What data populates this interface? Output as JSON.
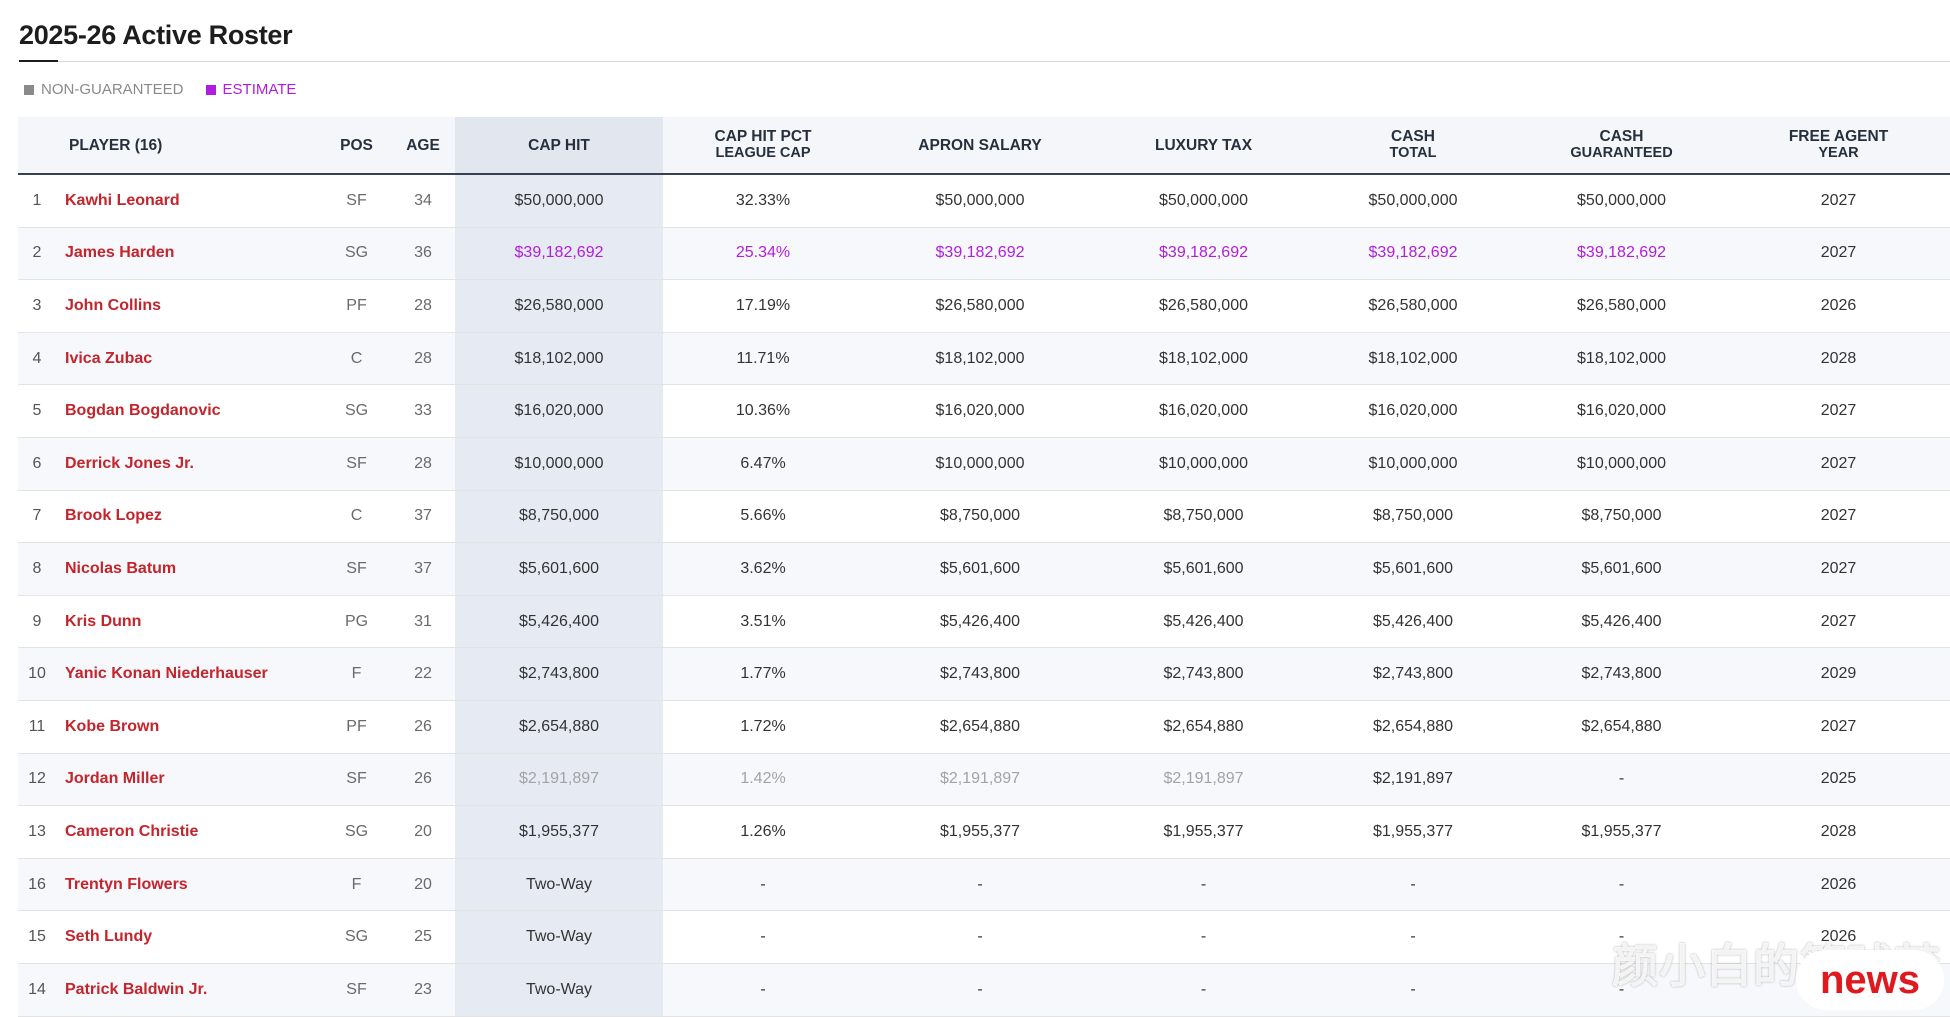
{
  "page": {
    "title": "2025-26 Active Roster"
  },
  "legend": [
    {
      "label": "NON-GUARANTEED",
      "color": "#8a8a8a"
    },
    {
      "label": "ESTIMATE",
      "color": "#b11de0"
    }
  ],
  "columns": {
    "player": "PLAYER (16)",
    "pos": "POS",
    "age": "AGE",
    "cap_hit": "CAP HIT",
    "cap_pct": [
      "CAP HIT PCT",
      "LEAGUE CAP"
    ],
    "apron": "APRON SALARY",
    "lux": "LUXURY TAX",
    "cash_total": [
      "CASH",
      "TOTAL"
    ],
    "cash_guar": [
      "CASH",
      "GUARANTEED"
    ],
    "fa": [
      "FREE AGENT",
      "YEAR"
    ]
  },
  "rows": [
    {
      "num": "1",
      "player": "Kawhi Leonard",
      "pos": "SF",
      "age": "34",
      "cap_hit": "$50,000,000",
      "cap_pct": "32.33%",
      "apron": "$50,000,000",
      "lux": "$50,000,000",
      "cash_total": "$50,000,000",
      "cash_guar": "$50,000,000",
      "fa": "2027",
      "status": "normal"
    },
    {
      "num": "2",
      "player": "James Harden",
      "pos": "SG",
      "age": "36",
      "cap_hit": "$39,182,692",
      "cap_pct": "25.34%",
      "apron": "$39,182,692",
      "lux": "$39,182,692",
      "cash_total": "$39,182,692",
      "cash_guar": "$39,182,692",
      "fa": "2027",
      "status": "estimate"
    },
    {
      "num": "3",
      "player": "John Collins",
      "pos": "PF",
      "age": "28",
      "cap_hit": "$26,580,000",
      "cap_pct": "17.19%",
      "apron": "$26,580,000",
      "lux": "$26,580,000",
      "cash_total": "$26,580,000",
      "cash_guar": "$26,580,000",
      "fa": "2026",
      "status": "normal"
    },
    {
      "num": "4",
      "player": "Ivica Zubac",
      "pos": "C",
      "age": "28",
      "cap_hit": "$18,102,000",
      "cap_pct": "11.71%",
      "apron": "$18,102,000",
      "lux": "$18,102,000",
      "cash_total": "$18,102,000",
      "cash_guar": "$18,102,000",
      "fa": "2028",
      "status": "normal"
    },
    {
      "num": "5",
      "player": "Bogdan Bogdanovic",
      "pos": "SG",
      "age": "33",
      "cap_hit": "$16,020,000",
      "cap_pct": "10.36%",
      "apron": "$16,020,000",
      "lux": "$16,020,000",
      "cash_total": "$16,020,000",
      "cash_guar": "$16,020,000",
      "fa": "2027",
      "status": "normal"
    },
    {
      "num": "6",
      "player": "Derrick Jones Jr.",
      "pos": "SF",
      "age": "28",
      "cap_hit": "$10,000,000",
      "cap_pct": "6.47%",
      "apron": "$10,000,000",
      "lux": "$10,000,000",
      "cash_total": "$10,000,000",
      "cash_guar": "$10,000,000",
      "fa": "2027",
      "status": "normal"
    },
    {
      "num": "7",
      "player": "Brook Lopez",
      "pos": "C",
      "age": "37",
      "cap_hit": "$8,750,000",
      "cap_pct": "5.66%",
      "apron": "$8,750,000",
      "lux": "$8,750,000",
      "cash_total": "$8,750,000",
      "cash_guar": "$8,750,000",
      "fa": "2027",
      "status": "normal"
    },
    {
      "num": "8",
      "player": "Nicolas Batum",
      "pos": "SF",
      "age": "37",
      "cap_hit": "$5,601,600",
      "cap_pct": "3.62%",
      "apron": "$5,601,600",
      "lux": "$5,601,600",
      "cash_total": "$5,601,600",
      "cash_guar": "$5,601,600",
      "fa": "2027",
      "status": "normal"
    },
    {
      "num": "9",
      "player": "Kris Dunn",
      "pos": "PG",
      "age": "31",
      "cap_hit": "$5,426,400",
      "cap_pct": "3.51%",
      "apron": "$5,426,400",
      "lux": "$5,426,400",
      "cash_total": "$5,426,400",
      "cash_guar": "$5,426,400",
      "fa": "2027",
      "status": "normal"
    },
    {
      "num": "10",
      "player": "Yanic Konan Niederhauser",
      "pos": "F",
      "age": "22",
      "cap_hit": "$2,743,800",
      "cap_pct": "1.77%",
      "apron": "$2,743,800",
      "lux": "$2,743,800",
      "cash_total": "$2,743,800",
      "cash_guar": "$2,743,800",
      "fa": "2029",
      "status": "normal"
    },
    {
      "num": "11",
      "player": "Kobe Brown",
      "pos": "PF",
      "age": "26",
      "cap_hit": "$2,654,880",
      "cap_pct": "1.72%",
      "apron": "$2,654,880",
      "lux": "$2,654,880",
      "cash_total": "$2,654,880",
      "cash_guar": "$2,654,880",
      "fa": "2027",
      "status": "normal"
    },
    {
      "num": "12",
      "player": "Jordan Miller",
      "pos": "SF",
      "age": "26",
      "cap_hit": "$2,191,897",
      "cap_pct": "1.42%",
      "apron": "$2,191,897",
      "lux": "$2,191,897",
      "cash_total": "$2,191,897",
      "cash_guar": "-",
      "fa": "2025",
      "status": "nonguaranteed"
    },
    {
      "num": "13",
      "player": "Cameron Christie",
      "pos": "SG",
      "age": "20",
      "cap_hit": "$1,955,377",
      "cap_pct": "1.26%",
      "apron": "$1,955,377",
      "lux": "$1,955,377",
      "cash_total": "$1,955,377",
      "cash_guar": "$1,955,377",
      "fa": "2028",
      "status": "normal"
    },
    {
      "num": "16",
      "player": "Trentyn Flowers",
      "pos": "F",
      "age": "20",
      "cap_hit": "Two-Way",
      "cap_pct": "-",
      "apron": "-",
      "lux": "-",
      "cash_total": "-",
      "cash_guar": "-",
      "fa": "2026",
      "status": "normal"
    },
    {
      "num": "15",
      "player": "Seth Lundy",
      "pos": "SG",
      "age": "25",
      "cap_hit": "Two-Way",
      "cap_pct": "-",
      "apron": "-",
      "lux": "-",
      "cash_total": "-",
      "cash_guar": "-",
      "fa": "2026",
      "status": "normal"
    },
    {
      "num": "14",
      "player": "Patrick Baldwin Jr.",
      "pos": "SF",
      "age": "23",
      "cap_hit": "Two-Way",
      "cap_pct": "-",
      "apron": "-",
      "lux": "-",
      "cash_total": "-",
      "cash_guar": "-",
      "fa": "",
      "status": "normal"
    }
  ],
  "watermark": {
    "text": "颜小白的篮球梦",
    "badge": "news"
  }
}
